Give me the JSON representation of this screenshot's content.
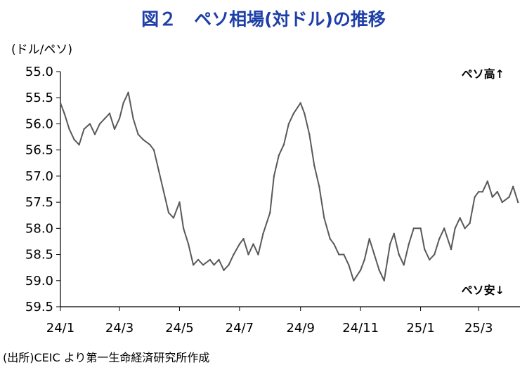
{
  "title": "図２　ペソ相場(対ドル)の推移",
  "unit_label": "(ドル/ペソ)",
  "source": "(出所)CEIC より第一生命経済研究所作成",
  "colors": {
    "title": "#1f3fa8",
    "line": "#595959",
    "axis": "#000000"
  },
  "chart_data": {
    "type": "line",
    "title": "図２　ペソ相場(対ドル)の推移",
    "ylabel": "(ドル/ペソ)",
    "xlabel": "",
    "y_inverted": true,
    "ylim": [
      55.0,
      59.5
    ],
    "yticks": [
      "55.0",
      "55.5",
      "56.0",
      "56.5",
      "57.0",
      "57.5",
      "58.0",
      "58.5",
      "59.0",
      "59.5"
    ],
    "xticks": [
      "24/1",
      "24/3",
      "24/5",
      "24/7",
      "24/9",
      "24/11",
      "25/1",
      "25/3"
    ],
    "grid": false,
    "annotations": [
      {
        "text": "ペソ高↑",
        "position": "top-right"
      },
      {
        "text": "ペソ安↓",
        "position": "bottom-right"
      }
    ],
    "series": [
      {
        "x": [
          "2024-01-01",
          "2024-01-05",
          "2024-01-10",
          "2024-01-15",
          "2024-01-20",
          "2024-01-25",
          "2024-01-31",
          "2024-02-05",
          "2024-02-10",
          "2024-02-15",
          "2024-02-20",
          "2024-02-25",
          "2024-03-01",
          "2024-03-05",
          "2024-03-10",
          "2024-03-15",
          "2024-03-20",
          "2024-03-25",
          "2024-04-01",
          "2024-04-05",
          "2024-04-10",
          "2024-04-15",
          "2024-04-20",
          "2024-04-25",
          "2024-05-01",
          "2024-05-05",
          "2024-05-10",
          "2024-05-15",
          "2024-05-20",
          "2024-05-25",
          "2024-06-01",
          "2024-06-05",
          "2024-06-10",
          "2024-06-15",
          "2024-06-20",
          "2024-06-25",
          "2024-07-01",
          "2024-07-05",
          "2024-07-10",
          "2024-07-15",
          "2024-07-20",
          "2024-07-25",
          "2024-08-01",
          "2024-08-05",
          "2024-08-10",
          "2024-08-15",
          "2024-08-20",
          "2024-08-25",
          "2024-09-01",
          "2024-09-05",
          "2024-09-10",
          "2024-09-15",
          "2024-09-20",
          "2024-09-25",
          "2024-10-01",
          "2024-10-05",
          "2024-10-10",
          "2024-10-15",
          "2024-10-20",
          "2024-10-25",
          "2024-11-01",
          "2024-11-05",
          "2024-11-10",
          "2024-11-15",
          "2024-11-20",
          "2024-11-25",
          "2024-12-01",
          "2024-12-05",
          "2024-12-10",
          "2024-12-15",
          "2024-12-20",
          "2024-12-25",
          "2025-01-01",
          "2025-01-05",
          "2025-01-10",
          "2025-01-15",
          "2025-01-20",
          "2025-01-25",
          "2025-02-01",
          "2025-02-05",
          "2025-02-10",
          "2025-02-15",
          "2025-02-20",
          "2025-02-25",
          "2025-03-01",
          "2025-03-05",
          "2025-03-10",
          "2025-03-15",
          "2025-03-20",
          "2025-03-25",
          "2025-04-01",
          "2025-04-05",
          "2025-04-10"
        ],
        "y": [
          55.6,
          55.8,
          56.1,
          56.3,
          56.4,
          56.1,
          56.0,
          56.2,
          56.0,
          55.9,
          55.8,
          56.1,
          55.9,
          55.6,
          55.4,
          55.9,
          56.2,
          56.3,
          56.4,
          56.5,
          56.9,
          57.3,
          57.7,
          57.8,
          57.5,
          58.0,
          58.3,
          58.7,
          58.6,
          58.7,
          58.6,
          58.7,
          58.6,
          58.8,
          58.7,
          58.5,
          58.3,
          58.2,
          58.5,
          58.3,
          58.5,
          58.1,
          57.7,
          57.0,
          56.6,
          56.4,
          56.0,
          55.8,
          55.6,
          55.8,
          56.2,
          56.8,
          57.2,
          57.8,
          58.2,
          58.3,
          58.5,
          58.5,
          58.7,
          59.0,
          58.8,
          58.6,
          58.2,
          58.5,
          58.8,
          59.0,
          58.3,
          58.1,
          58.5,
          58.7,
          58.3,
          58.0,
          58.0,
          58.4,
          58.6,
          58.5,
          58.2,
          58.0,
          58.4,
          58.0,
          57.8,
          58.0,
          57.9,
          57.4,
          57.3,
          57.3,
          57.1,
          57.4,
          57.3,
          57.5,
          57.4,
          57.2,
          57.5
        ]
      }
    ]
  }
}
